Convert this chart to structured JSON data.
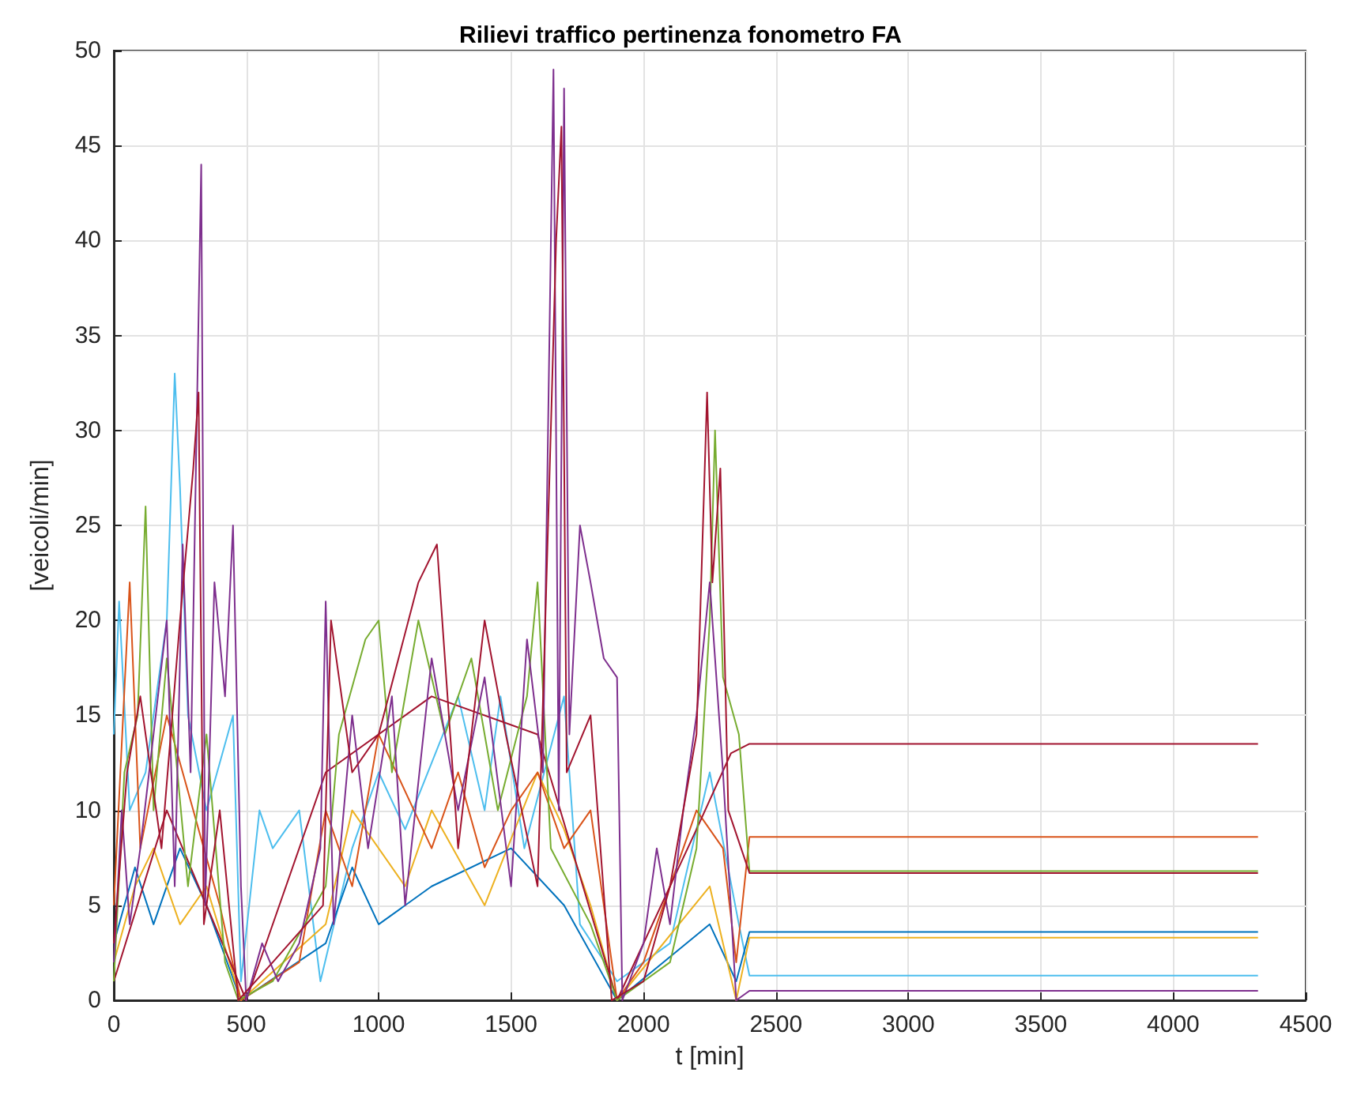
{
  "chart_data": {
    "type": "line",
    "title": "Rilievi traffico pertinenza fonometro FA",
    "xlabel": "t [min]",
    "ylabel": "[veicoli/min]",
    "xlim": [
      0,
      4500
    ],
    "xticks": [
      0,
      500,
      1000,
      1500,
      2000,
      2500,
      3000,
      3500,
      4000,
      4500
    ],
    "ylim": [
      0,
      50
    ],
    "yticks": [
      0,
      5,
      10,
      15,
      20,
      25,
      30,
      35,
      40,
      45,
      50
    ],
    "grid": true,
    "marker": "none",
    "line_style": "solid",
    "series": [
      {
        "color": "#4dbeee",
        "x": [
          0,
          20,
          60,
          120,
          200,
          230,
          250,
          280,
          350,
          450,
          480,
          550,
          600,
          700,
          780,
          900,
          1000,
          1100,
          1300,
          1400,
          1460,
          1550,
          1700,
          1760,
          1900,
          2100,
          2250,
          2360,
          2400,
          4320
        ],
        "values": [
          14,
          21,
          10,
          12,
          20,
          33,
          27,
          15,
          10,
          15,
          1,
          10,
          8,
          10,
          1,
          8,
          12,
          9,
          16,
          10,
          16,
          8,
          16,
          4,
          1,
          3,
          12,
          4,
          1.3,
          1.3
        ]
      },
      {
        "color": "#0072bd",
        "x": [
          0,
          80,
          150,
          250,
          350,
          480,
          800,
          900,
          1000,
          1200,
          1500,
          1700,
          1900,
          2250,
          2350,
          2400,
          4320
        ],
        "values": [
          3,
          7,
          4,
          8,
          5,
          0,
          3,
          7,
          4,
          6,
          8,
          5,
          0,
          4,
          1,
          3.6,
          3.6
        ]
      },
      {
        "color": "#edb120",
        "x": [
          0,
          80,
          150,
          250,
          350,
          480,
          800,
          900,
          1100,
          1200,
          1400,
          1600,
          1700,
          1800,
          1900,
          2250,
          2350,
          2400,
          4320
        ],
        "values": [
          2,
          6,
          8,
          4,
          6,
          0,
          4,
          10,
          6,
          10,
          5,
          12,
          9,
          5,
          0,
          6,
          0,
          3.3,
          3.3
        ]
      },
      {
        "color": "#d95319",
        "x": [
          0,
          60,
          100,
          200,
          300,
          400,
          480,
          700,
          800,
          900,
          1000,
          1200,
          1300,
          1400,
          1500,
          1600,
          1700,
          1800,
          1900,
          2000,
          2200,
          2300,
          2350,
          2400,
          4320
        ],
        "values": [
          5,
          22,
          8,
          15,
          10,
          5,
          0,
          2,
          10,
          6,
          14,
          8,
          12,
          7,
          10,
          12,
          8,
          10,
          0,
          2,
          10,
          8,
          2,
          8.6,
          8.6
        ]
      },
      {
        "color": "#a2142f",
        "x": [
          0,
          200,
          500,
          800,
          1200,
          1600,
          1900,
          2200,
          2330,
          2400,
          4320
        ],
        "values": [
          1,
          10,
          0,
          12,
          16,
          14,
          0,
          9,
          13,
          13.5,
          13.5
        ]
      },
      {
        "color": "#77ac30",
        "x": [
          0,
          40,
          90,
          120,
          150,
          200,
          280,
          350,
          420,
          470,
          600,
          800,
          850,
          950,
          1000,
          1050,
          1150,
          1250,
          1350,
          1450,
          1560,
          1600,
          1650,
          1800,
          1900,
          2100,
          2200,
          2250,
          2270,
          2300,
          2360,
          2400,
          4320
        ],
        "values": [
          1,
          12,
          15,
          26,
          10,
          18,
          6,
          14,
          2,
          0,
          1,
          6,
          14,
          19,
          20,
          12,
          20,
          14,
          18,
          10,
          16,
          22,
          8,
          4,
          0,
          2,
          8,
          20,
          30,
          17,
          14,
          6.8,
          6.8
        ]
      },
      {
        "color": "#7e2f8e",
        "x": [
          0,
          30,
          60,
          100,
          150,
          200,
          230,
          260,
          290,
          330,
          345,
          380,
          420,
          450,
          480,
          500,
          560,
          620,
          700,
          780,
          800,
          830,
          900,
          960,
          1050,
          1100,
          1200,
          1300,
          1400,
          1500,
          1560,
          1620,
          1660,
          1680,
          1700,
          1720,
          1760,
          1800,
          1850,
          1900,
          1920,
          2000,
          2050,
          2100,
          2150,
          2200,
          2250,
          2300,
          2350,
          2400,
          4320
        ],
        "values": [
          2,
          10,
          4,
          8,
          14,
          20,
          6,
          24,
          12,
          44,
          5,
          22,
          16,
          25,
          6,
          0,
          3,
          1,
          3,
          8,
          21,
          4,
          15,
          8,
          16,
          5,
          18,
          10,
          17,
          6,
          19,
          12,
          49,
          10,
          48,
          14,
          25,
          22,
          18,
          17,
          0,
          3,
          8,
          4,
          10,
          15,
          22,
          12,
          0,
          0.5,
          0.5
        ]
      },
      {
        "color": "#a2142f",
        "x": [
          0,
          50,
          100,
          180,
          250,
          300,
          320,
          340,
          400,
          470,
          600,
          790,
          820,
          900,
          1000,
          1150,
          1220,
          1300,
          1400,
          1480,
          1600,
          1650,
          1670,
          1690,
          1710,
          1800,
          1880,
          2000,
          2100,
          2200,
          2240,
          2260,
          2290,
          2320,
          2400,
          4320
        ],
        "values": [
          3,
          12,
          16,
          8,
          20,
          28,
          32,
          4,
          10,
          0,
          2,
          5,
          20,
          12,
          14,
          22,
          24,
          8,
          20,
          14,
          6,
          30,
          40,
          46,
          12,
          15,
          0,
          1,
          6,
          14,
          32,
          22,
          28,
          10,
          6.7,
          6.7
        ]
      }
    ]
  }
}
